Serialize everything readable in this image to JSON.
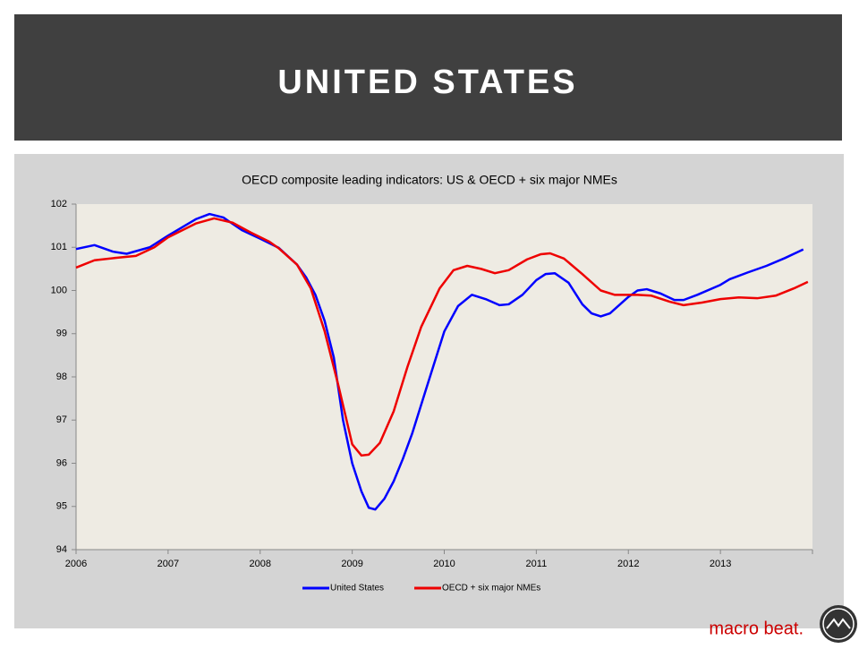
{
  "header": {
    "title": "UNITED STATES"
  },
  "footer": {
    "brand": "macro beat."
  },
  "chart_data": {
    "type": "line",
    "title": "OECD composite leading indicators: US & OECD + six major NMEs",
    "xlim": [
      2006,
      2014
    ],
    "xticks": [
      2006,
      2007,
      2008,
      2009,
      2010,
      2011,
      2012,
      2013
    ],
    "ylim": [
      94,
      102
    ],
    "yticks": [
      94,
      95,
      96,
      97,
      98,
      99,
      100,
      101,
      102
    ],
    "legend": "bottom",
    "series": [
      {
        "name": "United States",
        "color": "#0000ff",
        "x": [
          2006.0,
          2006.2,
          2006.4,
          2006.55,
          2006.8,
          2007.0,
          2007.3,
          2007.45,
          2007.6,
          2007.8,
          2008.0,
          2008.2,
          2008.4,
          2008.5,
          2008.6,
          2008.7,
          2008.8,
          2008.9,
          2009.0,
          2009.1,
          2009.18,
          2009.25,
          2009.35,
          2009.45,
          2009.55,
          2009.65,
          2009.8,
          2010.0,
          2010.15,
          2010.3,
          2010.45,
          2010.6,
          2010.7,
          2010.85,
          2011.0,
          2011.1,
          2011.2,
          2011.35,
          2011.5,
          2011.6,
          2011.7,
          2011.8,
          2012.0,
          2012.1,
          2012.2,
          2012.35,
          2012.5,
          2012.6,
          2012.75,
          2013.0,
          2013.1,
          2013.3,
          2013.5,
          2013.7,
          2013.9
        ],
        "values": [
          100.96,
          101.05,
          100.9,
          100.85,
          101.0,
          101.27,
          101.65,
          101.77,
          101.69,
          101.4,
          101.2,
          100.99,
          100.6,
          100.3,
          99.9,
          99.3,
          98.45,
          97.0,
          96.0,
          95.35,
          94.97,
          94.93,
          95.18,
          95.58,
          96.1,
          96.68,
          97.7,
          99.05,
          99.64,
          99.9,
          99.8,
          99.66,
          99.68,
          99.9,
          100.24,
          100.38,
          100.4,
          100.18,
          99.68,
          99.47,
          99.4,
          99.47,
          99.85,
          100.0,
          100.03,
          99.93,
          99.78,
          99.78,
          99.9,
          100.13,
          100.26,
          100.42,
          100.57,
          100.75,
          100.95
        ]
      },
      {
        "name": "OECD + six major NMEs",
        "color": "#ee0000",
        "x": [
          2006.0,
          2006.2,
          2006.45,
          2006.65,
          2006.85,
          2007.0,
          2007.3,
          2007.5,
          2007.7,
          2007.9,
          2008.1,
          2008.2,
          2008.4,
          2008.55,
          2008.7,
          2008.85,
          2009.0,
          2009.1,
          2009.18,
          2009.3,
          2009.45,
          2009.6,
          2009.75,
          2009.95,
          2010.1,
          2010.25,
          2010.4,
          2010.55,
          2010.7,
          2010.9,
          2011.05,
          2011.15,
          2011.3,
          2011.5,
          2011.7,
          2011.85,
          2012.1,
          2012.25,
          2012.45,
          2012.6,
          2012.8,
          2013.0,
          2013.2,
          2013.4,
          2013.6,
          2013.8,
          2013.95
        ],
        "values": [
          100.53,
          100.7,
          100.76,
          100.8,
          101.0,
          101.23,
          101.55,
          101.67,
          101.57,
          101.34,
          101.13,
          100.98,
          100.6,
          100.05,
          99.06,
          97.8,
          96.44,
          96.18,
          96.2,
          96.47,
          97.2,
          98.23,
          99.16,
          100.05,
          100.47,
          100.57,
          100.5,
          100.4,
          100.47,
          100.72,
          100.84,
          100.86,
          100.74,
          100.38,
          100.0,
          99.9,
          99.9,
          99.88,
          99.74,
          99.66,
          99.72,
          99.8,
          99.84,
          99.82,
          99.88,
          100.05,
          100.2
        ]
      }
    ]
  }
}
